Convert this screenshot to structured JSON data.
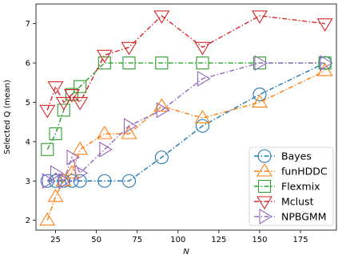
{
  "chart_data": {
    "type": "line",
    "xlabel": "N",
    "ylabel": "Selected Q (mean)",
    "xlim": [
      13,
      197
    ],
    "ylim": [
      1.75,
      7.5
    ],
    "xticks": [
      25,
      50,
      75,
      100,
      125,
      150,
      175
    ],
    "yticks": [
      2,
      3,
      4,
      5,
      6,
      7
    ],
    "grid": false,
    "legend_position": "lower-right",
    "series": [
      {
        "name": "Bayes",
        "color": "#1f77b4",
        "marker": "circle",
        "x": [
          20,
          25,
          30,
          35,
          40,
          55,
          70,
          90,
          115,
          150,
          190
        ],
        "y": [
          3.0,
          3.0,
          3.0,
          3.0,
          3.0,
          3.0,
          3.0,
          3.6,
          4.4,
          5.2,
          6.0
        ]
      },
      {
        "name": "funHDDC",
        "color": "#ff7f0e",
        "marker": "triangle-up",
        "x": [
          20,
          25,
          30,
          35,
          40,
          55,
          70,
          90,
          115,
          150,
          190
        ],
        "y": [
          2.0,
          2.6,
          3.0,
          3.2,
          3.8,
          4.2,
          4.2,
          4.9,
          4.6,
          5.0,
          5.8
        ]
      },
      {
        "name": "Flexmix",
        "color": "#2ca02c",
        "marker": "square",
        "x": [
          20,
          25,
          30,
          35,
          40,
          55,
          70,
          90,
          115,
          150,
          190
        ],
        "y": [
          3.8,
          4.2,
          4.8,
          5.2,
          5.4,
          6.0,
          6.0,
          6.0,
          6.0,
          6.0,
          6.0
        ]
      },
      {
        "name": "Mclust",
        "color": "#d62728",
        "marker": "triangle-down",
        "x": [
          20,
          25,
          30,
          35,
          40,
          55,
          70,
          90,
          115,
          150,
          190
        ],
        "y": [
          4.8,
          5.4,
          5.0,
          5.2,
          5.0,
          6.2,
          6.4,
          7.2,
          6.4,
          7.2,
          7.0
        ]
      },
      {
        "name": "NPBGMM",
        "color": "#9467bd",
        "marker": "triangle-right",
        "x": [
          20,
          25,
          30,
          35,
          40,
          55,
          70,
          90,
          115,
          150,
          190
        ],
        "y": [
          3.0,
          3.2,
          3.0,
          3.6,
          3.2,
          3.8,
          4.4,
          4.8,
          5.6,
          6.0,
          6.0
        ]
      }
    ]
  }
}
